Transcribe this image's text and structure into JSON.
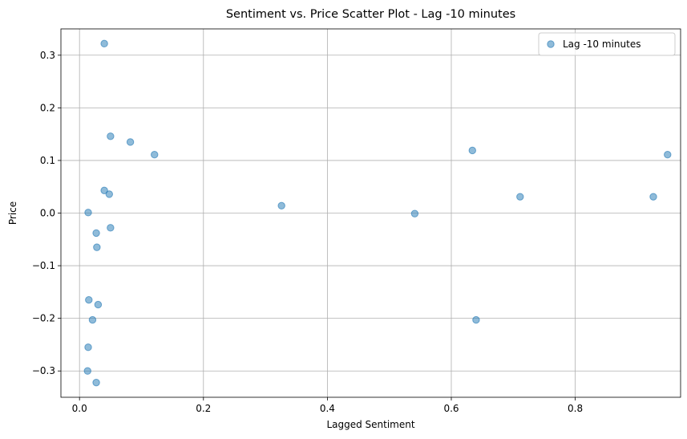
{
  "chart_data": {
    "type": "scatter",
    "title": "Sentiment vs. Price Scatter Plot - Lag -10 minutes",
    "xlabel": "Lagged Sentiment",
    "ylabel": "Price",
    "xlim": [
      -0.03,
      0.97
    ],
    "ylim": [
      -0.35,
      0.35
    ],
    "xticks": [
      0.0,
      0.2,
      0.4,
      0.6,
      0.8
    ],
    "xtick_labels": [
      "0.0",
      "0.2",
      "0.4",
      "0.6",
      "0.8"
    ],
    "yticks": [
      0.3,
      0.2,
      0.1,
      0.0,
      -0.1,
      -0.2,
      -0.3
    ],
    "ytick_labels": [
      "0.3",
      "0.2",
      "0.1",
      "0.0",
      "−0.1",
      "−0.2",
      "−0.3"
    ],
    "grid": true,
    "legend_position": "top-right",
    "series": [
      {
        "name": "Lag -10 minutes",
        "color": "#1f77b4",
        "x": [
          0.04,
          0.05,
          0.082,
          0.121,
          0.04,
          0.048,
          0.014,
          0.05,
          0.027,
          0.028,
          0.015,
          0.03,
          0.021,
          0.014,
          0.013,
          0.027,
          0.326,
          0.541,
          0.634,
          0.64,
          0.711,
          0.926,
          0.949
        ],
        "y": [
          0.322,
          0.146,
          0.135,
          0.111,
          0.043,
          0.036,
          0.001,
          -0.028,
          -0.038,
          -0.065,
          -0.165,
          -0.174,
          -0.203,
          -0.255,
          -0.3,
          -0.322,
          0.014,
          -0.001,
          0.119,
          -0.203,
          0.031,
          0.031,
          0.111
        ]
      }
    ]
  }
}
